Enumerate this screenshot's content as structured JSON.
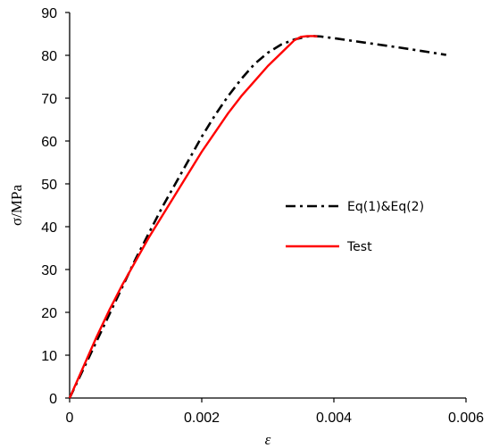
{
  "chart_data": {
    "type": "line",
    "title": "",
    "xlabel": "ε",
    "ylabel": "σ/MPa",
    "xlim": [
      0,
      0.006
    ],
    "ylim": [
      0,
      90
    ],
    "xticks": [
      0,
      0.002,
      0.004,
      0.006
    ],
    "xtick_labels": [
      "0",
      "0.002",
      "0.004",
      "0.006"
    ],
    "yticks": [
      0,
      10,
      20,
      30,
      40,
      50,
      60,
      70,
      80,
      90
    ],
    "ytick_labels": [
      "0",
      "10",
      "20",
      "30",
      "40",
      "50",
      "60",
      "70",
      "80",
      "90"
    ],
    "grid": false,
    "legend_position": "right",
    "series": [
      {
        "name": "Eq(1)&Eq(2)",
        "color": "#000000",
        "line_style": "dash-dot",
        "x": [
          0,
          0.0002,
          0.0004,
          0.0006,
          0.0008,
          0.001,
          0.0012,
          0.0014,
          0.0016,
          0.0018,
          0.002,
          0.0022,
          0.0024,
          0.0026,
          0.0028,
          0.003,
          0.0032,
          0.0034,
          0.0036,
          0.0037,
          0.0038,
          0.004,
          0.0045,
          0.005,
          0.0055,
          0.0057
        ],
        "y": [
          0,
          6.5,
          13,
          19.5,
          26,
          32.5,
          38.5,
          44.5,
          50,
          55.5,
          61,
          66,
          70.5,
          74.5,
          78,
          80.6,
          82.5,
          83.7,
          84.4,
          84.5,
          84.4,
          84.0,
          82.9,
          81.8,
          80.6,
          80.1
        ]
      },
      {
        "name": "Test",
        "color": "#ff0000",
        "line_style": "solid",
        "x": [
          0,
          0.0002,
          0.0004,
          0.0006,
          0.0008,
          0.001,
          0.0012,
          0.0014,
          0.0016,
          0.0018,
          0.002,
          0.0022,
          0.0024,
          0.0026,
          0.0028,
          0.003,
          0.0032,
          0.0034,
          0.0035,
          0.0036,
          0.0037,
          0.00375
        ],
        "y": [
          0,
          7,
          14,
          20.5,
          26.5,
          32,
          37.5,
          42.5,
          47.5,
          52.5,
          57.5,
          62,
          66.5,
          70.5,
          74,
          77.5,
          80.5,
          83.5,
          84.3,
          84.5,
          84.5,
          84.4
        ]
      }
    ]
  }
}
